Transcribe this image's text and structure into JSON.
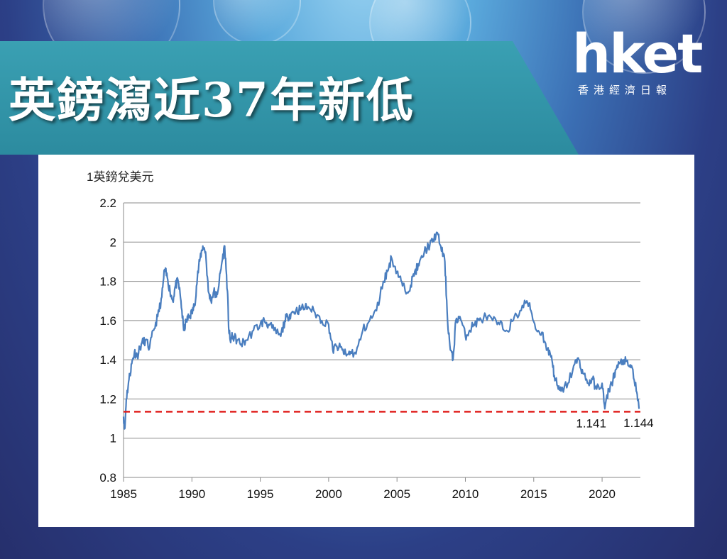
{
  "header": {
    "title": "英鎊瀉近37年新低",
    "logo_main": "hket",
    "logo_sub": "香港經濟日報"
  },
  "colors": {
    "banner": "#2c8b9f",
    "line": "#4a7ebf",
    "reference": "#e0201f"
  },
  "chart_data": {
    "type": "line",
    "title": "",
    "ylabel": "1英鎊兌美元",
    "xlabel": "",
    "xlim": [
      1985,
      2022.8
    ],
    "ylim": [
      0.8,
      2.2
    ],
    "grid": "horizontal",
    "x_ticks": [
      "1985",
      "1990",
      "1995",
      "2000",
      "2005",
      "2010",
      "2015",
      "2020"
    ],
    "x_tick_values": [
      1985,
      1990,
      1995,
      2000,
      2005,
      2010,
      2015,
      2020
    ],
    "y_ticks": [
      "0.8",
      "1",
      "1.2",
      "1.4",
      "1.6",
      "1.8",
      "2",
      "2.2"
    ],
    "y_tick_values": [
      0.8,
      1.0,
      1.2,
      1.4,
      1.6,
      1.8,
      2.0,
      2.2
    ],
    "series": [
      {
        "color": "#4a7ebf",
        "x": [
          1985.0,
          1985.1,
          1985.2,
          1985.4,
          1985.6,
          1985.8,
          1986.0,
          1986.3,
          1986.6,
          1986.9,
          1987.2,
          1987.5,
          1987.8,
          1988.0,
          1988.2,
          1988.4,
          1988.6,
          1988.8,
          1989.0,
          1989.2,
          1989.4,
          1989.6,
          1989.8,
          1990.0,
          1990.2,
          1990.4,
          1990.6,
          1990.8,
          1991.0,
          1991.2,
          1991.4,
          1991.6,
          1991.8,
          1992.0,
          1992.2,
          1992.4,
          1992.6,
          1992.7,
          1992.8,
          1993.0,
          1993.3,
          1993.6,
          1994.0,
          1994.5,
          1995.0,
          1995.3,
          1995.6,
          1996.0,
          1996.5,
          1996.8,
          1997.0,
          1997.3,
          1997.6,
          1998.0,
          1998.5,
          1999.0,
          1999.5,
          2000.0,
          2000.3,
          2000.6,
          2001.0,
          2001.3,
          2001.6,
          2002.0,
          2002.5,
          2003.0,
          2003.5,
          2004.0,
          2004.3,
          2004.6,
          2005.0,
          2005.3,
          2005.6,
          2006.0,
          2006.3,
          2006.6,
          2007.0,
          2007.3,
          2007.6,
          2007.9,
          2008.2,
          2008.5,
          2008.7,
          2008.9,
          2009.1,
          2009.3,
          2009.6,
          2010.0,
          2010.3,
          2010.6,
          2011.0,
          2011.5,
          2012.0,
          2012.5,
          2013.0,
          2013.5,
          2014.0,
          2014.5,
          2014.8,
          2015.2,
          2015.6,
          2016.0,
          2016.3,
          2016.5,
          2016.8,
          2017.0,
          2017.5,
          2018.0,
          2018.3,
          2018.6,
          2019.0,
          2019.3,
          2019.6,
          2020.0,
          2020.2,
          2020.5,
          2020.8,
          2021.0,
          2021.3,
          2021.6,
          2021.9,
          2022.2,
          2022.5,
          2022.7
        ],
        "y": [
          1.11,
          1.05,
          1.2,
          1.3,
          1.38,
          1.44,
          1.42,
          1.48,
          1.5,
          1.46,
          1.55,
          1.62,
          1.72,
          1.86,
          1.82,
          1.75,
          1.7,
          1.78,
          1.8,
          1.7,
          1.55,
          1.6,
          1.62,
          1.64,
          1.68,
          1.82,
          1.92,
          1.98,
          1.95,
          1.75,
          1.7,
          1.75,
          1.72,
          1.8,
          1.9,
          1.98,
          1.75,
          1.55,
          1.5,
          1.52,
          1.5,
          1.48,
          1.5,
          1.55,
          1.58,
          1.6,
          1.58,
          1.55,
          1.52,
          1.6,
          1.62,
          1.64,
          1.65,
          1.66,
          1.67,
          1.64,
          1.6,
          1.58,
          1.45,
          1.47,
          1.45,
          1.42,
          1.44,
          1.43,
          1.55,
          1.6,
          1.65,
          1.8,
          1.85,
          1.92,
          1.85,
          1.8,
          1.75,
          1.78,
          1.85,
          1.88,
          1.95,
          1.98,
          2.0,
          2.05,
          1.98,
          1.9,
          1.6,
          1.45,
          1.4,
          1.6,
          1.62,
          1.52,
          1.55,
          1.58,
          1.6,
          1.62,
          1.6,
          1.58,
          1.55,
          1.6,
          1.65,
          1.7,
          1.65,
          1.55,
          1.54,
          1.45,
          1.42,
          1.32,
          1.25,
          1.24,
          1.28,
          1.38,
          1.4,
          1.33,
          1.28,
          1.3,
          1.25,
          1.28,
          1.15,
          1.25,
          1.3,
          1.35,
          1.38,
          1.4,
          1.37,
          1.36,
          1.24,
          1.15
        ]
      }
    ],
    "reference_line": {
      "y": 1.135,
      "style": "dashed",
      "color": "#e0201f"
    },
    "annotations": [
      {
        "text": "1.141",
        "x": 2020.2,
        "y": 1.141
      },
      {
        "text": "1.144",
        "x": 2022.7,
        "y": 1.144
      }
    ]
  }
}
